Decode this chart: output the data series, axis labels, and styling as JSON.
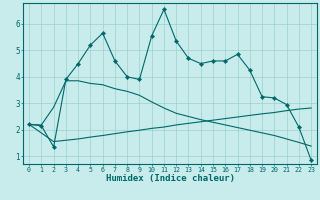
{
  "xlabel": "Humidex (Indice chaleur)",
  "bg_color": "#c8ecec",
  "grid_color": "#9ecece",
  "line_color": "#006868",
  "xlim": [
    -0.5,
    23.5
  ],
  "ylim": [
    0.7,
    6.8
  ],
  "yticks": [
    1,
    2,
    3,
    4,
    5,
    6
  ],
  "xticks": [
    0,
    1,
    2,
    3,
    4,
    5,
    6,
    7,
    8,
    9,
    10,
    11,
    12,
    13,
    14,
    15,
    16,
    17,
    18,
    19,
    20,
    21,
    22,
    23
  ],
  "series1_x": [
    0,
    1,
    2,
    3,
    4,
    5,
    6,
    7,
    8,
    9,
    10,
    11,
    12,
    13,
    14,
    15,
    16,
    17,
    18,
    19,
    20,
    21,
    22,
    23
  ],
  "series1_y": [
    2.2,
    2.15,
    1.35,
    3.9,
    4.5,
    5.2,
    5.65,
    4.6,
    4.0,
    3.9,
    5.55,
    6.55,
    5.35,
    4.7,
    4.5,
    4.6,
    4.6,
    4.85,
    4.25,
    3.25,
    3.2,
    2.95,
    2.1,
    0.85
  ],
  "series2_x": [
    0,
    2,
    3,
    4,
    5,
    6,
    7,
    8,
    9,
    10,
    11,
    12,
    13,
    14,
    15,
    16,
    17,
    18,
    19,
    20,
    21,
    22,
    23
  ],
  "series2_y": [
    2.2,
    1.55,
    1.6,
    1.65,
    1.72,
    1.78,
    1.85,
    1.92,
    1.98,
    2.05,
    2.1,
    2.18,
    2.24,
    2.3,
    2.36,
    2.42,
    2.48,
    2.54,
    2.6,
    2.65,
    2.72,
    2.78,
    2.82
  ],
  "series3_x": [
    0,
    1,
    2,
    3,
    4,
    5,
    6,
    7,
    8,
    9,
    10,
    11,
    12,
    13,
    14,
    15,
    16,
    17,
    18,
    19,
    20,
    21,
    22,
    23
  ],
  "series3_y": [
    2.2,
    2.18,
    2.85,
    3.85,
    3.85,
    3.75,
    3.7,
    3.55,
    3.45,
    3.3,
    3.05,
    2.82,
    2.62,
    2.5,
    2.38,
    2.28,
    2.18,
    2.08,
    1.98,
    1.88,
    1.78,
    1.65,
    1.52,
    1.38
  ]
}
